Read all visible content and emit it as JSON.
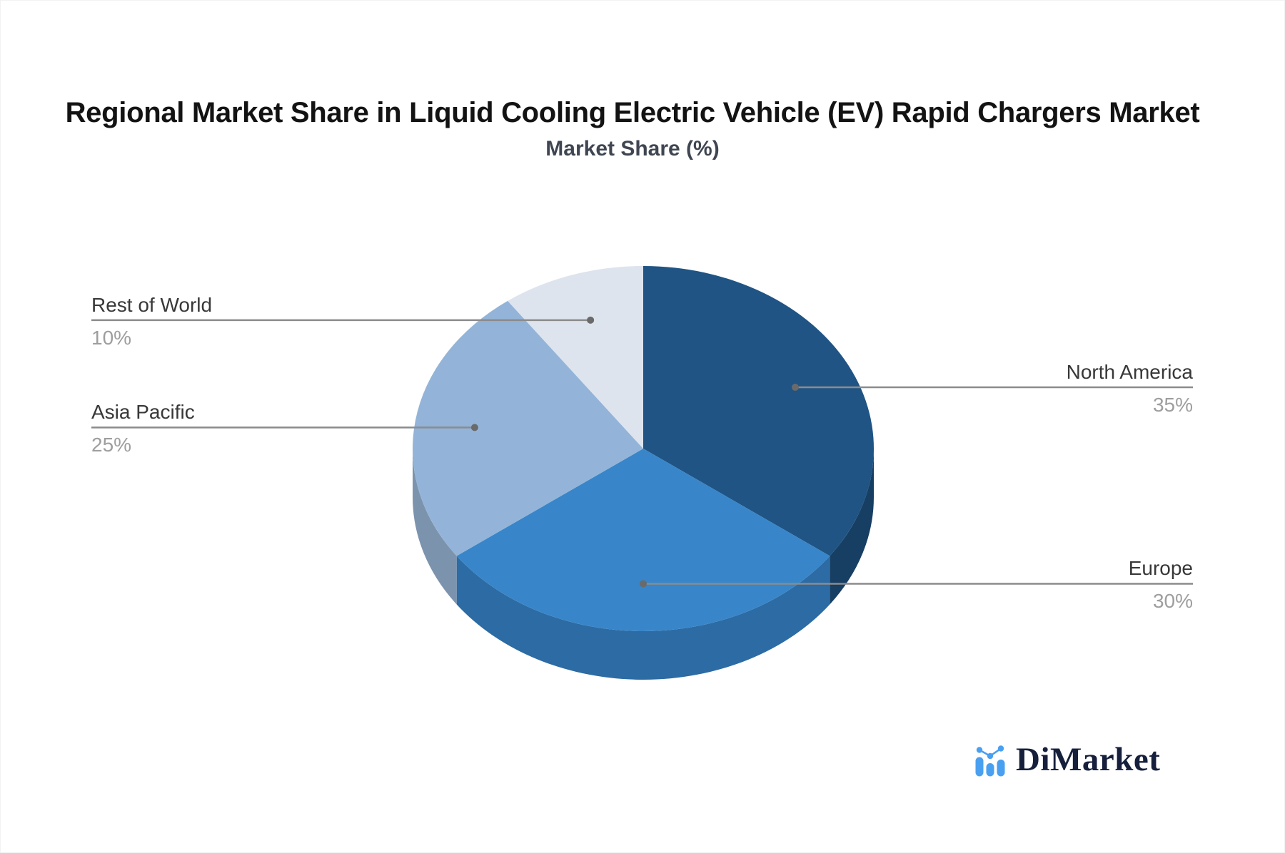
{
  "header": {
    "title": "Regional Market Share in Liquid Cooling Electric Vehicle (EV) Rapid Chargers Market",
    "subtitle": "Market Share (%)"
  },
  "chart_data": {
    "type": "pie",
    "style": "3d-pie",
    "title": "Regional Market Share in Liquid Cooling Electric Vehicle (EV) Rapid Chargers Market",
    "subtitle": "Market Share (%)",
    "unit": "%",
    "categories": [
      "North America",
      "Europe",
      "Asia Pacific",
      "Rest of World"
    ],
    "values": [
      35,
      30,
      25,
      10
    ],
    "value_labels": [
      "35%",
      "30%",
      "25%",
      "10%"
    ],
    "slice_colors": [
      "#1F5484",
      "#3886C9",
      "#93B4D8",
      "#DDE4EE"
    ],
    "slice_side_colors": [
      "#173E63",
      "#2C6BA3",
      "#7C93AE",
      "#C2CCDA"
    ],
    "start_angle_deg": 90,
    "direction": "clockwise",
    "legend": "none",
    "label_style": {
      "leader_line_color": "#8b8b8b",
      "leader_dot_color": "#6a6a6a",
      "name_color": "#383838",
      "value_color": "#9e9e9e"
    },
    "background": "#FFFFFF"
  },
  "logo": {
    "text": "DiMarket",
    "icon": "bar-line-chart-icon"
  }
}
